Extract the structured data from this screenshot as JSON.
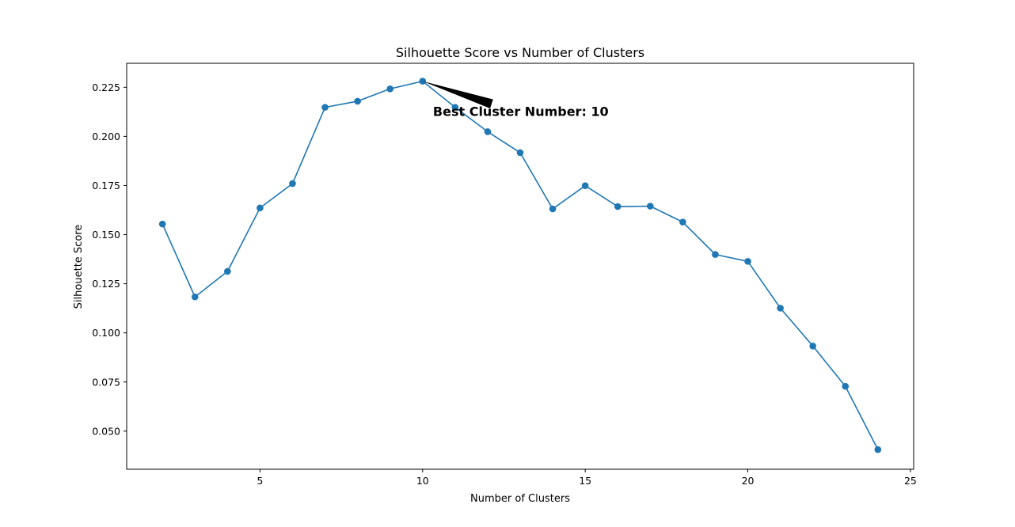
{
  "chart_data": {
    "type": "line",
    "title": "Silhouette Score vs Number of Clusters",
    "xlabel": "Number of Clusters",
    "ylabel": "Silhouette Score",
    "xlim": [
      0.9,
      25.1
    ],
    "ylim": [
      0.0306,
      0.2372
    ],
    "xticks": [
      5,
      10,
      15,
      20,
      25
    ],
    "yticks": [
      0.05,
      0.075,
      0.1,
      0.125,
      0.15,
      0.175,
      0.2,
      0.225
    ],
    "ytick_labels": [
      "0.050",
      "0.075",
      "0.100",
      "0.125",
      "0.150",
      "0.175",
      "0.200",
      "0.225"
    ],
    "grid": false,
    "series": [
      {
        "color": "#1f77b4",
        "marker": "circle",
        "x": [
          2,
          3,
          4,
          5,
          6,
          7,
          8,
          9,
          10,
          11,
          12,
          13,
          14,
          15,
          16,
          17,
          18,
          19,
          20,
          21,
          22,
          23,
          24
        ],
        "y": [
          0.1554,
          0.1183,
          0.1313,
          0.1636,
          0.176,
          0.2148,
          0.2179,
          0.2242,
          0.2281,
          0.2148,
          0.2024,
          0.1917,
          0.1631,
          0.1749,
          0.1643,
          0.1645,
          0.1564,
          0.1399,
          0.1364,
          0.1126,
          0.0933,
          0.0728,
          0.0406
        ]
      }
    ],
    "annotation": {
      "text": "Best Cluster Number: 10",
      "x": 10,
      "y": 0.2281,
      "text_x": 10.32,
      "text_y": 0.2105
    }
  }
}
